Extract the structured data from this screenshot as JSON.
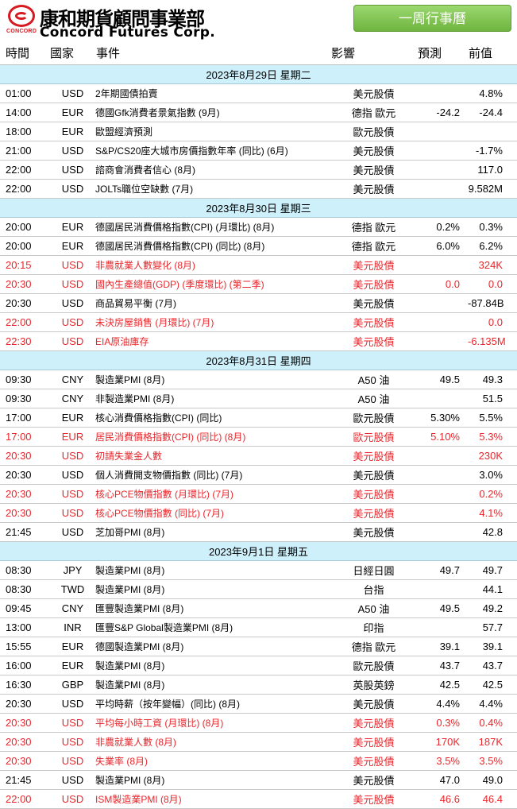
{
  "brand": {
    "name_cn": "康和期貨顧問事業部",
    "name_en": "Concord Futures Corp.",
    "logo_text": "CONCORD"
  },
  "week_button": "一周行事曆",
  "columns": {
    "time": "時間",
    "country": "國家",
    "event": "事件",
    "impact": "影響",
    "forecast": "預測",
    "previous": "前值"
  },
  "days": [
    {
      "date": "2023年8月29日  星期二",
      "rows": [
        {
          "time": "01:00",
          "country": "USD",
          "event": "2年期國債拍賣",
          "impact": "美元股債",
          "forecast": "",
          "previous": "4.8%",
          "red": false
        },
        {
          "time": "14:00",
          "country": "EUR",
          "event": "德國Gfk消費者景氣指數 (9月)",
          "impact": "德指 歐元",
          "forecast": "-24.2",
          "previous": "-24.4",
          "red": false
        },
        {
          "time": "18:00",
          "country": "EUR",
          "event": "歐盟經濟預測",
          "impact": "歐元股債",
          "forecast": "",
          "previous": "",
          "red": false
        },
        {
          "time": "21:00",
          "country": "USD",
          "event": "S&P/CS20座大城市房價指數年率 (同比) (6月)",
          "impact": "美元股債",
          "forecast": "",
          "previous": "-1.7%",
          "red": false
        },
        {
          "time": "22:00",
          "country": "USD",
          "event": "諮商會消費者信心 (8月)",
          "impact": "美元股債",
          "forecast": "",
          "previous": "117.0",
          "red": false
        },
        {
          "time": "22:00",
          "country": "USD",
          "event": "JOLTs職位空缺數 (7月)",
          "impact": "美元股債",
          "forecast": "",
          "previous": "9.582M",
          "red": false
        }
      ]
    },
    {
      "date": "2023年8月30日  星期三",
      "rows": [
        {
          "time": "20:00",
          "country": "EUR",
          "event": "德國居民消費價格指數(CPI) (月環比) (8月)",
          "impact": "德指 歐元",
          "forecast": "0.2%",
          "previous": "0.3%",
          "red": false
        },
        {
          "time": "20:00",
          "country": "EUR",
          "event": "德國居民消費價格指數(CPI) (同比) (8月)",
          "impact": "德指 歐元",
          "forecast": "6.0%",
          "previous": "6.2%",
          "red": false
        },
        {
          "time": "20:15",
          "country": "USD",
          "event": "非農就業人數變化 (8月)",
          "impact": "美元股債",
          "forecast": "",
          "previous": "324K",
          "red": true
        },
        {
          "time": "20:30",
          "country": "USD",
          "event": "國內生產總值(GDP) (季度環比) (第二季)",
          "impact": "美元股債",
          "forecast": "0.0",
          "previous": "0.0",
          "red": true
        },
        {
          "time": "20:30",
          "country": "USD",
          "event": "商品貿易平衡 (7月)",
          "impact": "美元股債",
          "forecast": "",
          "previous": "-87.84B",
          "red": false
        },
        {
          "time": "22:00",
          "country": "USD",
          "event": "未決房屋銷售 (月環比) (7月)",
          "impact": "美元股債",
          "forecast": "",
          "previous": "0.0",
          "red": true
        },
        {
          "time": "22:30",
          "country": "USD",
          "event": "EIA原油庫存",
          "impact": "美元股債",
          "forecast": "",
          "previous": "-6.135M",
          "red": true
        }
      ]
    },
    {
      "date": "2023年8月31日  星期四",
      "rows": [
        {
          "time": "09:30",
          "country": "CNY",
          "event": "製造業PMI (8月)",
          "impact": "A50 油",
          "forecast": "49.5",
          "previous": "49.3",
          "red": false
        },
        {
          "time": "09:30",
          "country": "CNY",
          "event": "非製造業PMI (8月)",
          "impact": "A50 油",
          "forecast": "",
          "previous": "51.5",
          "red": false
        },
        {
          "time": "17:00",
          "country": "EUR",
          "event": "核心消費價格指數(CPI) (同比)",
          "impact": "歐元股債",
          "forecast": "5.30%",
          "previous": "5.5%",
          "red": false
        },
        {
          "time": "17:00",
          "country": "EUR",
          "event": "居民消費價格指數(CPI) (同比) (8月)",
          "impact": "歐元股債",
          "forecast": "5.10%",
          "previous": "5.3%",
          "red": true
        },
        {
          "time": "20:30",
          "country": "USD",
          "event": "初請失業金人數",
          "impact": "美元股債",
          "forecast": "",
          "previous": "230K",
          "red": true
        },
        {
          "time": "20:30",
          "country": "USD",
          "event": "個人消費開支物價指數 (同比) (7月)",
          "impact": "美元股債",
          "forecast": "",
          "previous": "3.0%",
          "red": false
        },
        {
          "time": "20:30",
          "country": "USD",
          "event": "核心PCE物價指數 (月環比) (7月)",
          "impact": "美元股債",
          "forecast": "",
          "previous": "0.2%",
          "red": true
        },
        {
          "time": "20:30",
          "country": "USD",
          "event": "核心PCE物價指數 (同比) (7月)",
          "impact": "美元股債",
          "forecast": "",
          "previous": "4.1%",
          "red": true
        },
        {
          "time": "21:45",
          "country": "USD",
          "event": "芝加哥PMI (8月)",
          "impact": "美元股債",
          "forecast": "",
          "previous": "42.8",
          "red": false
        }
      ]
    },
    {
      "date": "2023年9月1日  星期五",
      "rows": [
        {
          "time": "08:30",
          "country": "JPY",
          "event": "製造業PMI (8月)",
          "impact": "日經日圓",
          "forecast": "49.7",
          "previous": "49.7",
          "red": false
        },
        {
          "time": "08:30",
          "country": "TWD",
          "event": "製造業PMI (8月)",
          "impact": "台指",
          "forecast": "",
          "previous": "44.1",
          "red": false
        },
        {
          "time": "09:45",
          "country": "CNY",
          "event": "匯豐製造業PMI (8月)",
          "impact": "A50 油",
          "forecast": "49.5",
          "previous": "49.2",
          "red": false
        },
        {
          "time": "13:00",
          "country": "INR",
          "event": "匯豐S&P Global製造業PMI (8月)",
          "impact": "印指",
          "forecast": "",
          "previous": "57.7",
          "red": false
        },
        {
          "time": "15:55",
          "country": "EUR",
          "event": "德國製造業PMI (8月)",
          "impact": "德指 歐元",
          "forecast": "39.1",
          "previous": "39.1",
          "red": false
        },
        {
          "time": "16:00",
          "country": "EUR",
          "event": "製造業PMI (8月)",
          "impact": "歐元股債",
          "forecast": "43.7",
          "previous": "43.7",
          "red": false
        },
        {
          "time": "16:30",
          "country": "GBP",
          "event": "製造業PMI (8月)",
          "impact": "英股英鎊",
          "forecast": "42.5",
          "previous": "42.5",
          "red": false
        },
        {
          "time": "20:30",
          "country": "USD",
          "event": "平均時薪（按年變幅）(同比) (8月)",
          "impact": "美元股債",
          "forecast": "4.4%",
          "previous": "4.4%",
          "red": false
        },
        {
          "time": "20:30",
          "country": "USD",
          "event": "平均每小時工資 (月環比) (8月)",
          "impact": "美元股債",
          "forecast": "0.3%",
          "previous": "0.4%",
          "red": true
        },
        {
          "time": "20:30",
          "country": "USD",
          "event": "非農就業人數 (8月)",
          "impact": "美元股債",
          "forecast": "170K",
          "previous": "187K",
          "red": true
        },
        {
          "time": "20:30",
          "country": "USD",
          "event": "失業率 (8月)",
          "impact": "美元股債",
          "forecast": "3.5%",
          "previous": "3.5%",
          "red": true
        },
        {
          "time": "21:45",
          "country": "USD",
          "event": "製造業PMI (8月)",
          "impact": "美元股債",
          "forecast": "47.0",
          "previous": "49.0",
          "red": false
        },
        {
          "time": "22:00",
          "country": "USD",
          "event": "ISM製造業PMI (8月)",
          "impact": "美元股債",
          "forecast": "46.6",
          "previous": "46.4",
          "red": true
        }
      ]
    }
  ],
  "colors": {
    "highlight_red": "#e8262b",
    "date_row_bg": "#cdf0fa",
    "button_green": "#7dc34a",
    "brand_red": "#d71920"
  }
}
